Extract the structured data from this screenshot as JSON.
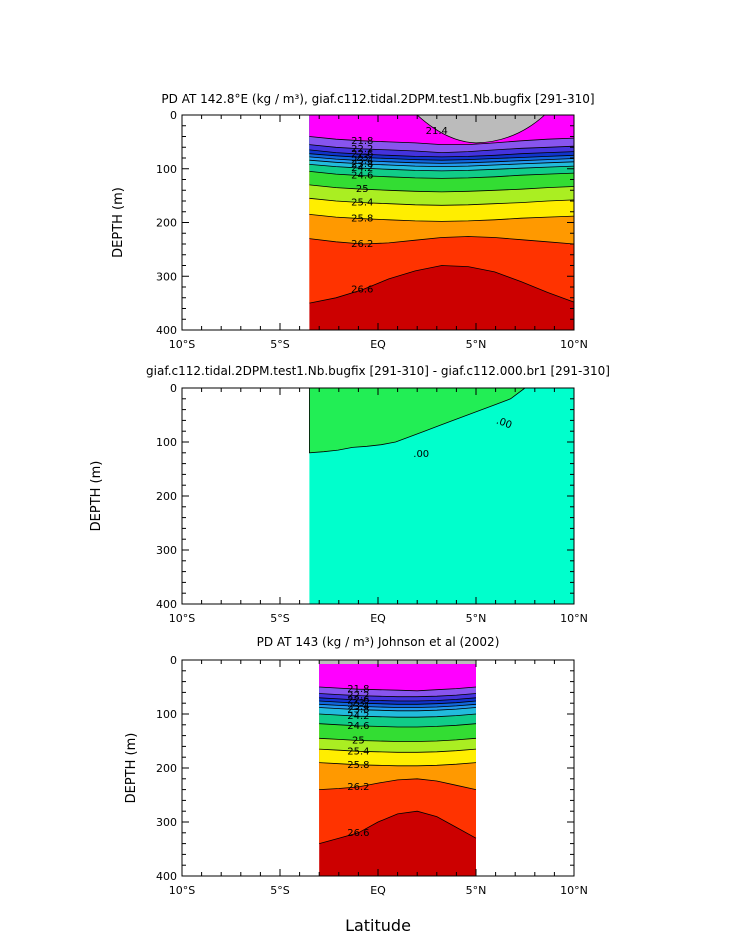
{
  "chart_data": [
    {
      "type": "heatmap",
      "title": "PD AT 142.8°E (kg / m³), giaf.c112.tidal.2DPM.test1.Nb.bugfix [291-310]",
      "ylabel": "DEPTH (m)",
      "xlabel": "",
      "xlim": [
        -10,
        10
      ],
      "ylim": [
        400,
        0
      ],
      "x_ticks": [
        "10°S",
        "5°S",
        "EQ",
        "5°N",
        "10°N"
      ],
      "y_ticks": [
        "0",
        "100",
        "200",
        "300",
        "400"
      ],
      "data_extent": [
        -3.5,
        10
      ],
      "contour_labels": [
        "21.4",
        "21.8",
        "22.2",
        "22.6",
        "23",
        "23.4",
        "23.8",
        "24.2",
        "24.6",
        "25",
        "25.4",
        "25.8",
        "26.2",
        "26.6"
      ],
      "contours": [
        {
          "level": 21.8,
          "depth": [
            40,
            45,
            48,
            50,
            52,
            55,
            55,
            52,
            48,
            45,
            43
          ]
        },
        {
          "level": 22.2,
          "depth": [
            55,
            60,
            63,
            65,
            67,
            70,
            68,
            65,
            62,
            60,
            58
          ]
        },
        {
          "level": 22.6,
          "depth": [
            65,
            70,
            73,
            75,
            77,
            78,
            77,
            75,
            72,
            70,
            68
          ]
        },
        {
          "level": 23,
          "depth": [
            72,
            76,
            79,
            81,
            83,
            84,
            83,
            81,
            79,
            77,
            75
          ]
        },
        {
          "level": 23.4,
          "depth": [
            78,
            82,
            85,
            87,
            89,
            90,
            89,
            87,
            85,
            83,
            81
          ]
        },
        {
          "level": 23.8,
          "depth": [
            84,
            88,
            91,
            93,
            95,
            96,
            95,
            93,
            91,
            89,
            87
          ]
        },
        {
          "level": 24.2,
          "depth": [
            92,
            96,
            99,
            101,
            103,
            104,
            103,
            101,
            99,
            97,
            95
          ]
        },
        {
          "level": 24.6,
          "depth": [
            105,
            110,
            113,
            115,
            117,
            118,
            117,
            115,
            112,
            110,
            108
          ]
        },
        {
          "level": 25,
          "depth": [
            130,
            135,
            138,
            140,
            142,
            143,
            142,
            140,
            138,
            135,
            133
          ]
        },
        {
          "level": 25.4,
          "depth": [
            155,
            160,
            163,
            165,
            167,
            168,
            167,
            165,
            163,
            160,
            158
          ]
        },
        {
          "level": 25.8,
          "depth": [
            185,
            190,
            193,
            195,
            197,
            198,
            197,
            195,
            192,
            190,
            188
          ]
        },
        {
          "level": 26.2,
          "depth": [
            230,
            236,
            240,
            238,
            233,
            228,
            226,
            228,
            232,
            236,
            240
          ]
        },
        {
          "level": 26.6,
          "depth": [
            350,
            340,
            325,
            305,
            290,
            280,
            282,
            292,
            310,
            330,
            348
          ]
        }
      ],
      "land_mask": "top surface 0-55 m from ~2°N to ~8°N (grey)"
    },
    {
      "type": "heatmap",
      "title": "giaf.c112.tidal.2DPM.test1.Nb.bugfix [291-310] - giaf.c112.000.br1 [291-310]",
      "ylabel": "DEPTH (m)",
      "xlabel": "",
      "xlim": [
        -10,
        10
      ],
      "ylim": [
        400,
        0
      ],
      "x_ticks": [
        "10°S",
        "5°S",
        "EQ",
        "5°N",
        "10°N"
      ],
      "y_ticks": [
        "0",
        "100",
        "200",
        "300",
        "400"
      ],
      "data_extent": [
        -3.5,
        10
      ],
      "contour_labels": [
        ".00",
        ".00"
      ],
      "regions": [
        {
          "name": "positive",
          "color": "#22ee55"
        },
        {
          "name": "negative",
          "color": "#00ffcc"
        }
      ],
      "zero_contour_depth": [
        120,
        118,
        115,
        110,
        108,
        105,
        100,
        90,
        80,
        70,
        60,
        50,
        40,
        30,
        20,
        0
      ]
    },
    {
      "type": "heatmap",
      "title": "PD AT 143 (kg / m³) Johnson et al (2002)",
      "ylabel": "DEPTH (m)",
      "xlabel": "Latitude",
      "xlim": [
        -10,
        10
      ],
      "ylim": [
        400,
        0
      ],
      "x_ticks": [
        "10°S",
        "5°S",
        "EQ",
        "5°N",
        "10°N"
      ],
      "y_ticks": [
        "0",
        "100",
        "200",
        "300",
        "400"
      ],
      "data_extent": [
        -3,
        5
      ],
      "contour_labels": [
        "21.8",
        "22.2",
        "22.6",
        "23",
        "23.4",
        "23.8",
        "24.2",
        "24.6",
        "25",
        "25.4",
        "25.8",
        "26.2",
        "26.6"
      ],
      "contours": [
        {
          "level": 21.8,
          "depth": [
            50,
            52,
            54,
            55,
            56,
            57,
            55,
            53,
            50
          ]
        },
        {
          "level": 22.2,
          "depth": [
            62,
            64,
            66,
            67,
            68,
            68,
            67,
            65,
            62
          ]
        },
        {
          "level": 22.6,
          "depth": [
            70,
            72,
            74,
            75,
            76,
            76,
            75,
            73,
            70
          ]
        },
        {
          "level": 23,
          "depth": [
            76,
            78,
            80,
            81,
            82,
            82,
            81,
            79,
            76
          ]
        },
        {
          "level": 23.4,
          "depth": [
            82,
            84,
            86,
            87,
            88,
            88,
            87,
            85,
            82
          ]
        },
        {
          "level": 23.8,
          "depth": [
            88,
            90,
            92,
            93,
            94,
            94,
            93,
            91,
            88
          ]
        },
        {
          "level": 24.2,
          "depth": [
            100,
            102,
            104,
            105,
            106,
            106,
            105,
            103,
            100
          ]
        },
        {
          "level": 24.6,
          "depth": [
            118,
            120,
            122,
            123,
            124,
            124,
            123,
            121,
            118
          ]
        },
        {
          "level": 25,
          "depth": [
            145,
            147,
            149,
            150,
            151,
            151,
            150,
            148,
            145
          ]
        },
        {
          "level": 25.4,
          "depth": [
            165,
            167,
            169,
            170,
            171,
            171,
            170,
            168,
            165
          ]
        },
        {
          "level": 25.8,
          "depth": [
            190,
            192,
            194,
            195,
            196,
            196,
            195,
            193,
            190
          ]
        },
        {
          "level": 26.2,
          "depth": [
            240,
            238,
            235,
            228,
            222,
            220,
            224,
            232,
            240
          ]
        },
        {
          "level": 26.6,
          "depth": [
            340,
            330,
            320,
            300,
            285,
            280,
            290,
            310,
            330
          ]
        }
      ]
    }
  ]
}
